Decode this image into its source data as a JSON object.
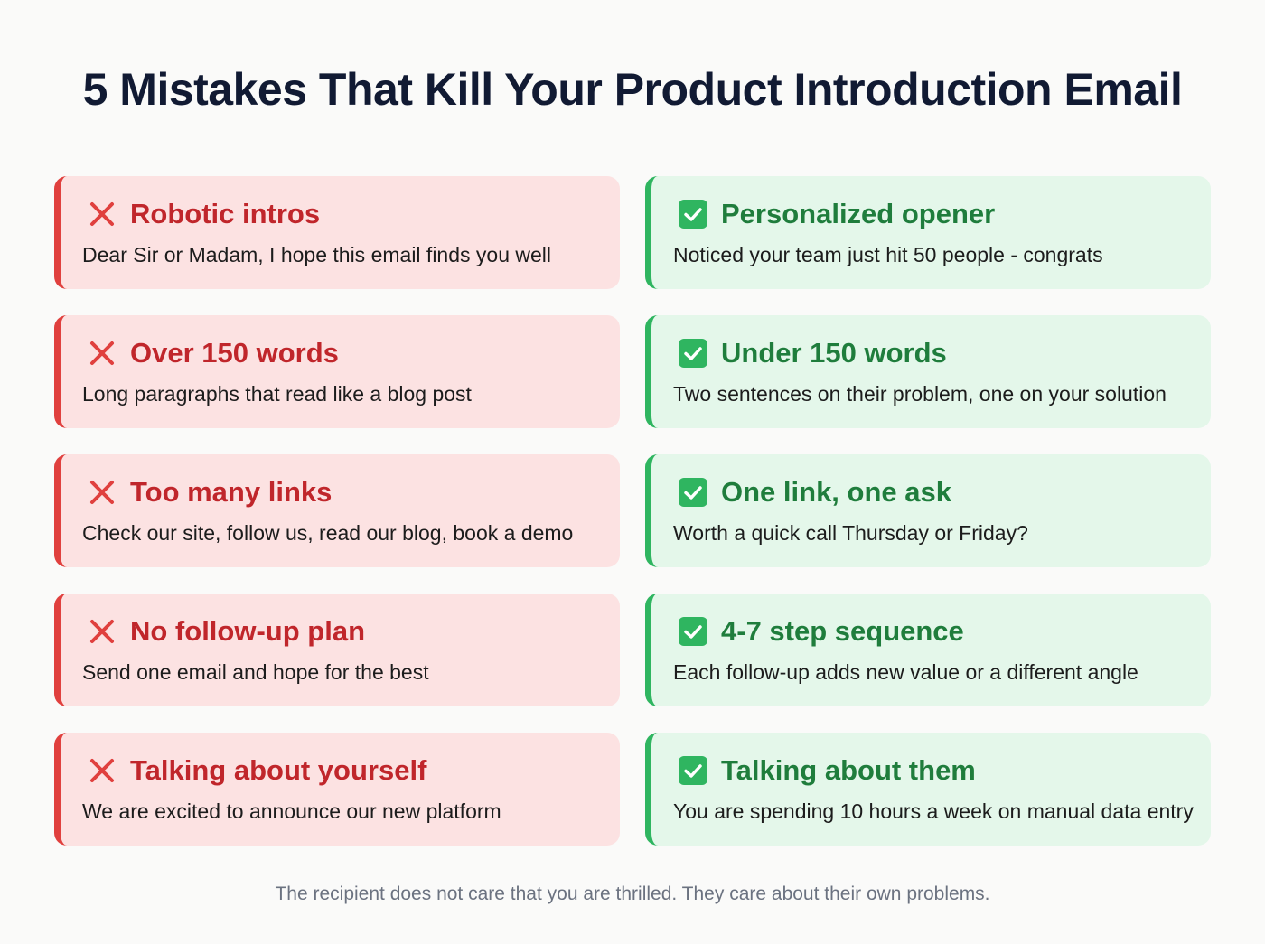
{
  "title": "5 Mistakes That Kill Your Product Introduction Email",
  "colors": {
    "bad_accent": "#e0403e",
    "bad_bg": "#fce2e2",
    "good_accent": "#2fb560",
    "good_bg": "#e4f7ea"
  },
  "rows": [
    {
      "mistake": {
        "icon": "x-icon",
        "heading": "Robotic intros",
        "text": "Dear Sir or Madam, I hope this email finds you well"
      },
      "fix": {
        "icon": "check-icon",
        "heading": "Personalized opener",
        "text": "Noticed your team just hit 50 people - congrats"
      }
    },
    {
      "mistake": {
        "icon": "x-icon",
        "heading": "Over 150 words",
        "text": "Long paragraphs that read like a blog post"
      },
      "fix": {
        "icon": "check-icon",
        "heading": "Under 150 words",
        "text": "Two sentences on their problem, one on your solution"
      }
    },
    {
      "mistake": {
        "icon": "x-icon",
        "heading": "Too many links",
        "text": "Check our site, follow us, read our blog, book a demo"
      },
      "fix": {
        "icon": "check-icon",
        "heading": "One link, one ask",
        "text": "Worth a quick call Thursday or Friday?"
      }
    },
    {
      "mistake": {
        "icon": "x-icon",
        "heading": "No follow-up plan",
        "text": "Send one email and hope for the best"
      },
      "fix": {
        "icon": "check-icon",
        "heading": "4-7 step sequence",
        "text": "Each follow-up adds new value or a different angle"
      }
    },
    {
      "mistake": {
        "icon": "x-icon",
        "heading": "Talking about yourself",
        "text": "We are excited to announce our new platform"
      },
      "fix": {
        "icon": "check-icon",
        "heading": "Talking about them",
        "text": "You are spending 10 hours a week on manual data entry"
      }
    }
  ],
  "footer": "The recipient does not care that you are thrilled. They care about their own problems."
}
